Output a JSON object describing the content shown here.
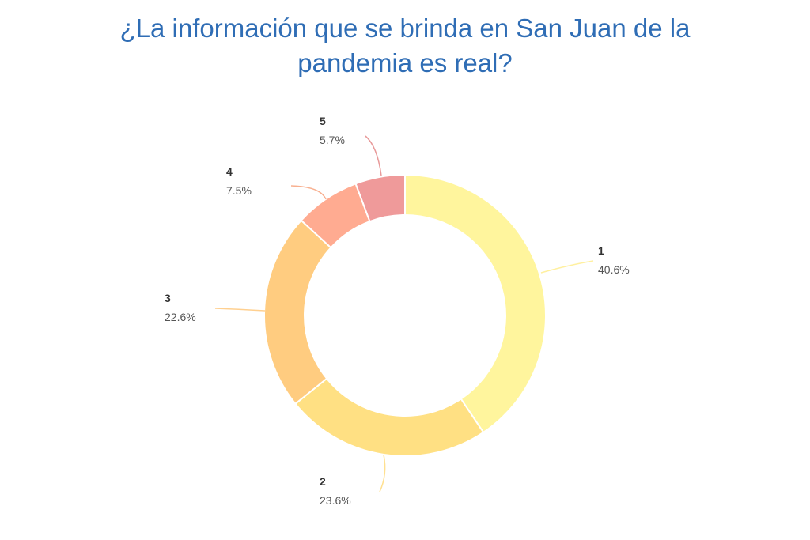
{
  "chart_data": {
    "type": "pie",
    "donut": true,
    "title_lines": [
      "¿La información que se brinda en San Juan de la",
      "pandemia es real?"
    ],
    "slices": [
      {
        "label": "1",
        "value": 40.6,
        "percent_text": "40.6%",
        "color": "#fff59d"
      },
      {
        "label": "2",
        "value": 23.6,
        "percent_text": "23.6%",
        "color": "#ffe083"
      },
      {
        "label": "3",
        "value": 22.6,
        "percent_text": "22.6%",
        "color": "#ffcc80"
      },
      {
        "label": "4",
        "value": 7.5,
        "percent_text": "7.5%",
        "color": "#ffab91"
      },
      {
        "label": "5",
        "value": 5.7,
        "percent_text": "5.7%",
        "color": "#ef9a9a"
      }
    ],
    "leader_colors": [
      "#fff0a0",
      "#ffe090",
      "#ffd090",
      "#f8b090",
      "#e89a9a"
    ],
    "title_color": "#2f6db5"
  }
}
